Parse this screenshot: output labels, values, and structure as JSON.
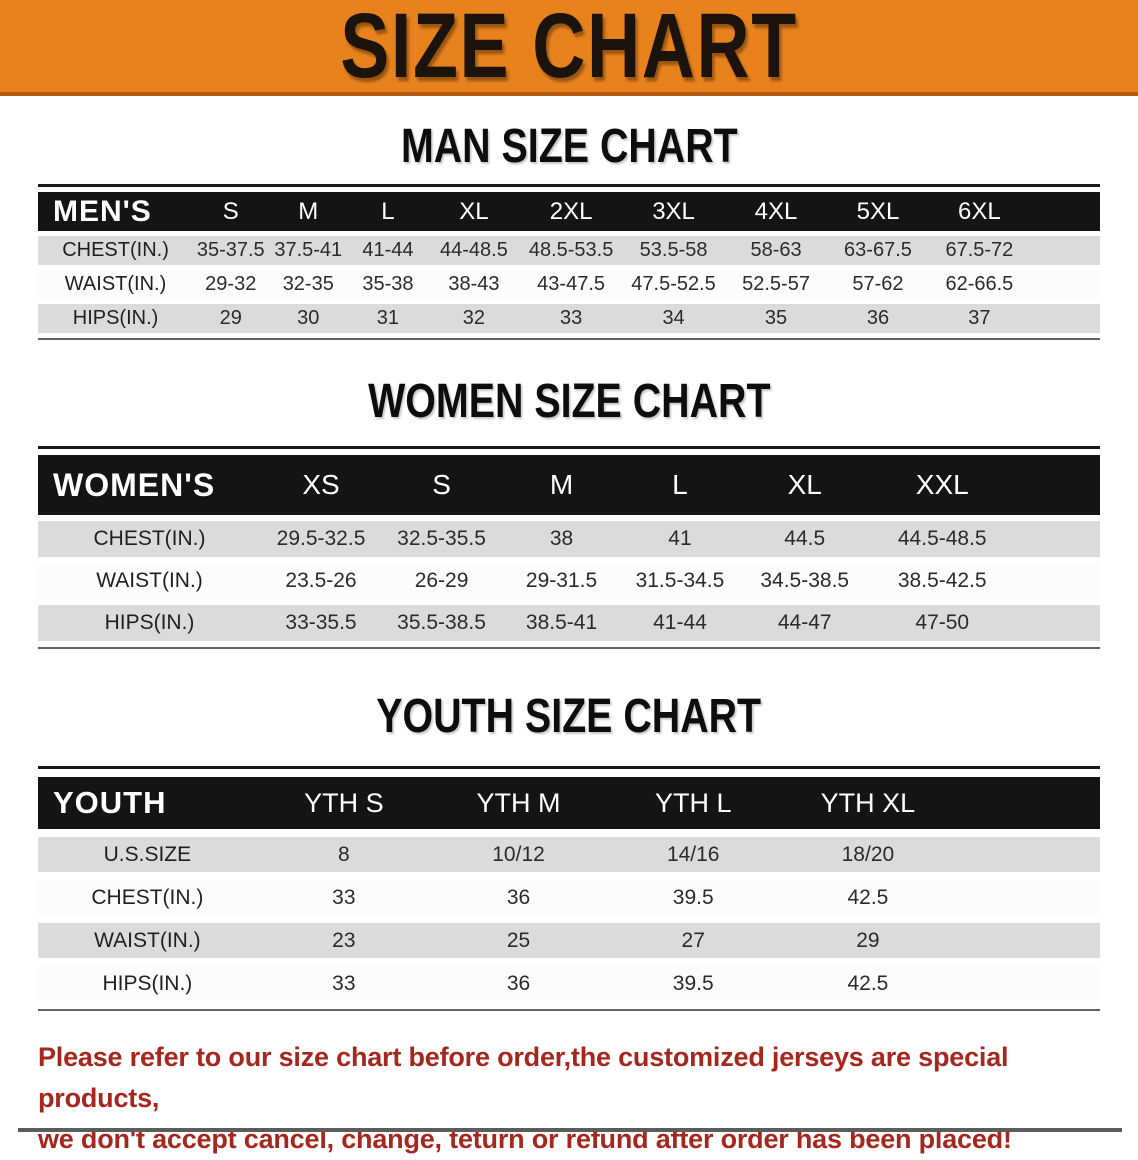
{
  "title_banner": {
    "text": "SIZE CHART"
  },
  "colors": {
    "banner_bg": "#E8821D",
    "banner_edge": "#B55A11",
    "header_bar": "#141414",
    "row_shade": "#DBDBDB",
    "row_light": "#FCFCFC",
    "notice_text": "#A5271E"
  },
  "sections": [
    {
      "heading": "MAN SIZE CHART",
      "table": {
        "corner_label": "MEN'S",
        "columns": [
          "S",
          "M",
          "L",
          "XL",
          "2XL",
          "3XL",
          "4XL",
          "5XL",
          "6XL"
        ],
        "rows": [
          {
            "label": "CHEST(IN.)",
            "values": [
              "35-37.5",
              "37.5-41",
              "41-44",
              "44-48.5",
              "48.5-53.5",
              "53.5-58",
              "58-63",
              "63-67.5",
              "67.5-72"
            ]
          },
          {
            "label": "WAIST(IN.)",
            "values": [
              "29-32",
              "32-35",
              "35-38",
              "38-43",
              "43-47.5",
              "47.5-52.5",
              "52.5-57",
              "57-62",
              "62-66.5"
            ]
          },
          {
            "label": "HIPS(IN.)",
            "values": [
              "29",
              "30",
              "31",
              "32",
              "33",
              "34",
              "35",
              "36",
              "37"
            ]
          }
        ]
      }
    },
    {
      "heading": "WOMEN SIZE CHART",
      "table": {
        "corner_label": "WOMEN'S",
        "columns": [
          "XS",
          "S",
          "M",
          "L",
          "XL",
          "XXL"
        ],
        "rows": [
          {
            "label": "CHEST(IN.)",
            "values": [
              "29.5-32.5",
              "32.5-35.5",
              "38",
              "41",
              "44.5",
              "44.5-48.5"
            ]
          },
          {
            "label": "WAIST(IN.)",
            "values": [
              "23.5-26",
              "26-29",
              "29-31.5",
              "31.5-34.5",
              "34.5-38.5",
              "38.5-42.5"
            ]
          },
          {
            "label": "HIPS(IN.)",
            "values": [
              "33-35.5",
              "35.5-38.5",
              "38.5-41",
              "41-44",
              "44-47",
              "47-50"
            ]
          }
        ]
      }
    },
    {
      "heading": "YOUTH SIZE CHART",
      "table": {
        "corner_label": "YOUTH",
        "columns": [
          "YTH S",
          "YTH M",
          "YTH L",
          "YTH XL"
        ],
        "rows": [
          {
            "label": "U.S.SIZE",
            "values": [
              "8",
              "10/12",
              "14/16",
              "18/20"
            ]
          },
          {
            "label": "CHEST(IN.)",
            "values": [
              "33",
              "36",
              "39.5",
              "42.5"
            ]
          },
          {
            "label": "WAIST(IN.)",
            "values": [
              "23",
              "25",
              "27",
              "29"
            ]
          },
          {
            "label": "HIPS(IN.)",
            "values": [
              "33",
              "36",
              "39.5",
              "42.5"
            ]
          }
        ]
      }
    }
  ],
  "notice": {
    "lines": [
      "Please refer to our size chart before order,the customized jerseys are special products,",
      "we don't accept cancel, change, teturn or refund after order has been placed!"
    ]
  }
}
